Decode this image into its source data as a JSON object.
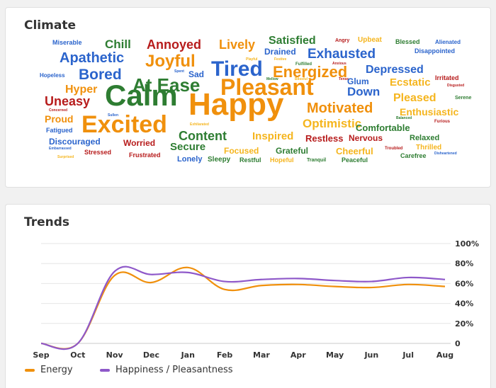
{
  "climate": {
    "title": "Climate",
    "colors": {
      "red": "#b71c1c",
      "blue": "#2b64cc",
      "green": "#2e7d32",
      "orange": "#f0900c",
      "yellow": "#f5b51e"
    },
    "words": [
      {
        "text": "Miserable",
        "color": "blue",
        "size": 9
      },
      {
        "text": "Chill",
        "color": "green",
        "size": 17
      },
      {
        "text": "Annoyed",
        "color": "red",
        "size": 18
      },
      {
        "text": "Lively",
        "color": "orange",
        "size": 18
      },
      {
        "text": "Satisfied",
        "color": "green",
        "size": 16
      },
      {
        "text": "Angry",
        "color": "red",
        "size": 7
      },
      {
        "text": "Upbeat",
        "color": "yellow",
        "size": 10
      },
      {
        "text": "Blessed",
        "color": "green",
        "size": 9
      },
      {
        "text": "Alienated",
        "color": "blue",
        "size": 8
      },
      {
        "text": "Apathetic",
        "color": "blue",
        "size": 20
      },
      {
        "text": "Joyful",
        "color": "orange",
        "size": 24
      },
      {
        "text": "Playful",
        "color": "yellow",
        "size": 5
      },
      {
        "text": "Drained",
        "color": "blue",
        "size": 12
      },
      {
        "text": "Festive",
        "color": "yellow",
        "size": 5
      },
      {
        "text": "Exhausted",
        "color": "blue",
        "size": 19
      },
      {
        "text": "Disappointed",
        "color": "blue",
        "size": 9
      },
      {
        "text": "Fulfilled",
        "color": "green",
        "size": 6
      },
      {
        "text": "Anxious",
        "color": "red",
        "size": 5
      },
      {
        "text": "Hopeless",
        "color": "blue",
        "size": 8
      },
      {
        "text": "Bored",
        "color": "blue",
        "size": 21
      },
      {
        "text": "Spent",
        "color": "blue",
        "size": 5
      },
      {
        "text": "Sad",
        "color": "blue",
        "size": 12
      },
      {
        "text": "Tired",
        "color": "blue",
        "size": 30
      },
      {
        "text": "Energized",
        "color": "orange",
        "size": 22
      },
      {
        "text": "Depressed",
        "color": "blue",
        "size": 16
      },
      {
        "text": "Irritated",
        "color": "red",
        "size": 9
      },
      {
        "text": "Hyper",
        "color": "orange",
        "size": 16
      },
      {
        "text": "At Ease",
        "color": "green",
        "size": 26
      },
      {
        "text": "Mellow",
        "color": "green",
        "size": 5
      },
      {
        "text": "Blissful",
        "color": "yellow",
        "size": 5
      },
      {
        "text": "Tense",
        "color": "red",
        "size": 5
      },
      {
        "text": "Glum",
        "color": "blue",
        "size": 12
      },
      {
        "text": "Ecstatic",
        "color": "yellow",
        "size": 15
      },
      {
        "text": "Disgusted",
        "color": "red",
        "size": 5
      },
      {
        "text": "Uneasy",
        "color": "red",
        "size": 18
      },
      {
        "text": "Calm",
        "color": "green",
        "size": 42
      },
      {
        "text": "Pleasant",
        "color": "orange",
        "size": 32
      },
      {
        "text": "Down",
        "color": "blue",
        "size": 17
      },
      {
        "text": "Pleased",
        "color": "yellow",
        "size": 16
      },
      {
        "text": "Serene",
        "color": "green",
        "size": 7
      },
      {
        "text": "Concerned",
        "color": "red",
        "size": 5
      },
      {
        "text": "Happy",
        "color": "orange",
        "size": 44
      },
      {
        "text": "Motivated",
        "color": "orange",
        "size": 20
      },
      {
        "text": "Enthusiastic",
        "color": "yellow",
        "size": 14
      },
      {
        "text": "Proud",
        "color": "orange",
        "size": 14
      },
      {
        "text": "Sullen",
        "color": "blue",
        "size": 5
      },
      {
        "text": "Balanced",
        "color": "green",
        "size": 5
      },
      {
        "text": "Furious",
        "color": "red",
        "size": 6
      },
      {
        "text": "Excited",
        "color": "orange",
        "size": 34
      },
      {
        "text": "Exhilarated",
        "color": "yellow",
        "size": 5
      },
      {
        "text": "Optimistic",
        "color": "yellow",
        "size": 17
      },
      {
        "text": "Comfortable",
        "color": "green",
        "size": 13
      },
      {
        "text": "Fatigued",
        "color": "blue",
        "size": 9
      },
      {
        "text": "Content",
        "color": "green",
        "size": 18
      },
      {
        "text": "Inspired",
        "color": "yellow",
        "size": 15
      },
      {
        "text": "Restless",
        "color": "red",
        "size": 13
      },
      {
        "text": "Nervous",
        "color": "red",
        "size": 12
      },
      {
        "text": "Relaxed",
        "color": "green",
        "size": 11
      },
      {
        "text": "Discouraged",
        "color": "blue",
        "size": 12
      },
      {
        "text": "Worried",
        "color": "red",
        "size": 12
      },
      {
        "text": "Thrilled",
        "color": "yellow",
        "size": 10
      },
      {
        "text": "Embarrassed",
        "color": "blue",
        "size": 5
      },
      {
        "text": "Secure",
        "color": "green",
        "size": 15
      },
      {
        "text": "Focused",
        "color": "yellow",
        "size": 12
      },
      {
        "text": "Grateful",
        "color": "green",
        "size": 12
      },
      {
        "text": "Cheerful",
        "color": "yellow",
        "size": 13
      },
      {
        "text": "Troubled",
        "color": "red",
        "size": 6
      },
      {
        "text": "Disheartened",
        "color": "blue",
        "size": 5
      },
      {
        "text": "Stressed",
        "color": "red",
        "size": 9
      },
      {
        "text": "Frustrated",
        "color": "red",
        "size": 9
      },
      {
        "text": "Carefree",
        "color": "green",
        "size": 9
      },
      {
        "text": "Surprised",
        "color": "yellow",
        "size": 5
      },
      {
        "text": "Lonely",
        "color": "blue",
        "size": 11
      },
      {
        "text": "Sleepy",
        "color": "green",
        "size": 10
      },
      {
        "text": "Restful",
        "color": "green",
        "size": 9
      },
      {
        "text": "Hopeful",
        "color": "yellow",
        "size": 9
      },
      {
        "text": "Tranquil",
        "color": "green",
        "size": 7
      },
      {
        "text": "Peaceful",
        "color": "green",
        "size": 9
      }
    ]
  },
  "trends": {
    "title": "Trends",
    "legend": [
      {
        "label": "Energy",
        "color": "#f0900c"
      },
      {
        "label": "Happiness / Pleasantness",
        "color": "#8e58c9"
      }
    ]
  },
  "chart_data": {
    "type": "line",
    "x": [
      "Sep",
      "Oct",
      "Nov",
      "Dec",
      "Jan",
      "Feb",
      "Mar",
      "Apr",
      "May",
      "Jun",
      "Jul",
      "Aug"
    ],
    "series": [
      {
        "name": "Energy",
        "color": "#f0900c",
        "values": [
          0,
          0,
          68,
          61,
          76,
          54,
          58,
          59,
          57,
          56,
          59,
          57
        ]
      },
      {
        "name": "Happiness / Pleasantness",
        "color": "#8e58c9",
        "values": [
          0,
          0,
          72,
          69,
          71,
          62,
          64,
          65,
          63,
          62,
          66,
          64
        ]
      }
    ],
    "y_ticks": [
      "0",
      "20%",
      "40%",
      "60%",
      "80%",
      "100%"
    ],
    "ylim": [
      0,
      100
    ],
    "grid": true,
    "legend_position": "bottom-left"
  }
}
